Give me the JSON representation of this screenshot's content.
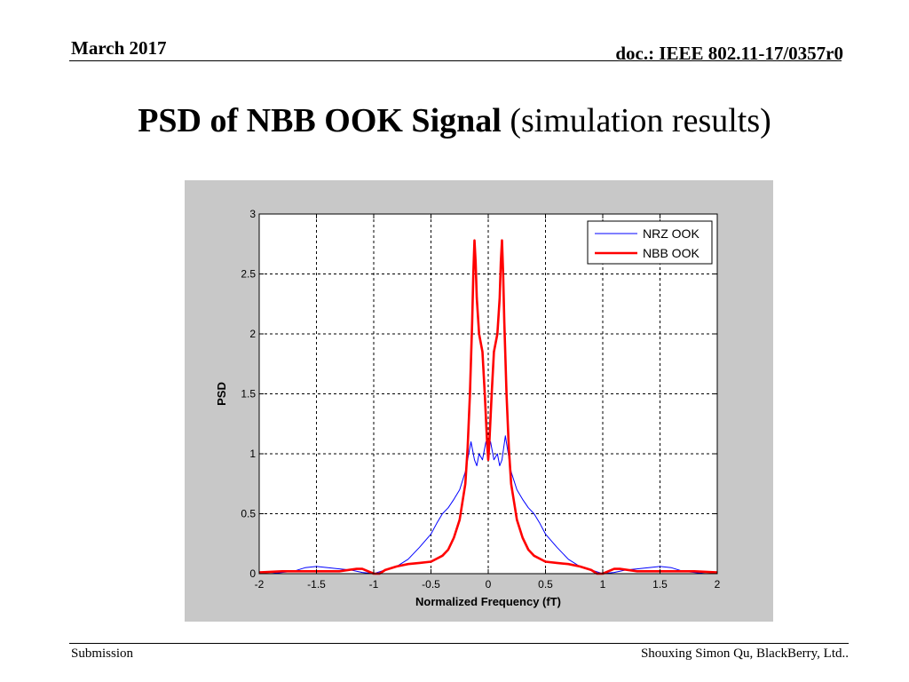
{
  "header": {
    "date": "March 2017",
    "doc_id": "doc.: IEEE 802.11-17/0357r0"
  },
  "slide": {
    "title_bold": "PSD of NBB OOK Signal",
    "title_rest": " (simulation results)"
  },
  "footer": {
    "left": "Submission",
    "right": "Shouxing Simon Qu, BlackBerry, Ltd.."
  },
  "chart_data": {
    "type": "line",
    "title": "",
    "xlabel": "Normalized Frequency (fT)",
    "ylabel": "PSD",
    "xlim": [
      -2,
      2
    ],
    "ylim": [
      0,
      3
    ],
    "xticks": [
      -2,
      -1.5,
      -1,
      -0.5,
      0,
      0.5,
      1,
      1.5,
      2
    ],
    "xtick_labels": [
      "-2",
      "-1.5",
      "-1",
      "-0.5",
      "0",
      "0.5",
      "1",
      "1.5",
      "2"
    ],
    "yticks": [
      0,
      0.5,
      1,
      1.5,
      2,
      2.5,
      3
    ],
    "ytick_labels": [
      "0",
      "0.5",
      "1",
      "1.5",
      "2",
      "2.5",
      "3"
    ],
    "grid": true,
    "legend_position": "top-right",
    "series": [
      {
        "name": "NRZ OOK",
        "color": "#0000ff",
        "x": [
          -2,
          -1.9,
          -1.8,
          -1.7,
          -1.6,
          -1.5,
          -1.4,
          -1.3,
          -1.2,
          -1.1,
          -1.0,
          -0.9,
          -0.8,
          -0.7,
          -0.6,
          -0.5,
          -0.45,
          -0.4,
          -0.35,
          -0.3,
          -0.25,
          -0.2,
          -0.15,
          -0.12,
          -0.1,
          -0.08,
          -0.05,
          -0.02,
          0,
          0.02,
          0.05,
          0.08,
          0.1,
          0.12,
          0.15,
          0.2,
          0.25,
          0.3,
          0.35,
          0.4,
          0.45,
          0.5,
          0.6,
          0.7,
          0.8,
          0.9,
          1.0,
          1.1,
          1.2,
          1.3,
          1.4,
          1.5,
          1.6,
          1.7,
          1.8,
          1.9,
          2
        ],
        "y": [
          0.0,
          0.0,
          0.01,
          0.02,
          0.05,
          0.06,
          0.05,
          0.04,
          0.03,
          0.01,
          0.0,
          0.03,
          0.06,
          0.12,
          0.22,
          0.33,
          0.42,
          0.5,
          0.55,
          0.62,
          0.7,
          0.85,
          1.1,
          0.95,
          0.9,
          1.0,
          0.95,
          1.1,
          1.05,
          1.1,
          0.95,
          1.0,
          0.9,
          0.95,
          1.15,
          0.85,
          0.7,
          0.62,
          0.55,
          0.5,
          0.42,
          0.33,
          0.22,
          0.12,
          0.06,
          0.03,
          0.0,
          0.01,
          0.03,
          0.04,
          0.05,
          0.06,
          0.05,
          0.02,
          0.01,
          0.0,
          0.0
        ]
      },
      {
        "name": "NBB OOK",
        "color": "#ff0000",
        "x": [
          -2,
          -1.8,
          -1.5,
          -1.3,
          -1.15,
          -1.1,
          -1.0,
          -0.95,
          -0.9,
          -0.8,
          -0.7,
          -0.6,
          -0.5,
          -0.4,
          -0.35,
          -0.3,
          -0.25,
          -0.2,
          -0.18,
          -0.16,
          -0.14,
          -0.13,
          -0.12,
          -0.11,
          -0.1,
          -0.08,
          -0.05,
          -0.03,
          -0.01,
          0,
          0.01,
          0.03,
          0.05,
          0.08,
          0.1,
          0.11,
          0.12,
          0.13,
          0.14,
          0.16,
          0.18,
          0.2,
          0.25,
          0.3,
          0.35,
          0.4,
          0.5,
          0.6,
          0.7,
          0.8,
          0.8,
          0.9,
          0.95,
          1.0,
          1.1,
          1.15,
          1.3,
          1.5,
          1.8,
          2
        ],
        "y": [
          0.01,
          0.02,
          0.02,
          0.02,
          0.04,
          0.04,
          0.0,
          0.0,
          0.03,
          0.06,
          0.08,
          0.09,
          0.1,
          0.15,
          0.2,
          0.3,
          0.45,
          0.75,
          1.05,
          1.5,
          2.1,
          2.5,
          2.78,
          2.6,
          2.3,
          2.0,
          1.85,
          1.5,
          1.1,
          0.95,
          1.1,
          1.5,
          1.85,
          2.0,
          2.3,
          2.6,
          2.78,
          2.5,
          2.1,
          1.5,
          1.05,
          0.75,
          0.45,
          0.3,
          0.2,
          0.15,
          0.1,
          0.09,
          0.08,
          0.06,
          0.06,
          0.03,
          0.0,
          0.0,
          0.04,
          0.04,
          0.02,
          0.02,
          0.02,
          0.01
        ]
      }
    ]
  }
}
